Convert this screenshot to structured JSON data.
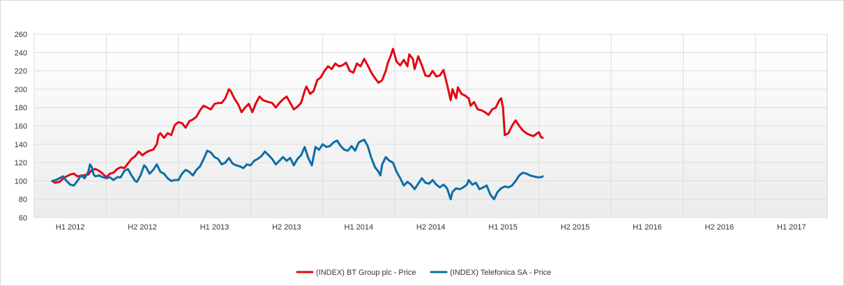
{
  "chart_data": {
    "type": "line",
    "title": "",
    "xlabel": "",
    "ylabel": "",
    "ylim": [
      60,
      260
    ],
    "yticks": [
      60,
      80,
      100,
      120,
      140,
      160,
      180,
      200,
      220,
      240,
      260
    ],
    "x_tick_labels": [
      "H1 2012",
      "H2 2012",
      "H1 2013",
      "H2 2013",
      "H1 2014",
      "H2 2014",
      "H1 2015",
      "H2 2015",
      "H1 2016",
      "H2 2016",
      "H1 2017"
    ],
    "grid": true,
    "legend_position": "bottom",
    "series": [
      {
        "name": "(INDEX) BT Group plc - Price",
        "color": "#e30613",
        "points": [
          [
            0.5,
            100
          ],
          [
            0.58,
            98
          ],
          [
            0.7,
            99
          ],
          [
            0.85,
            104
          ],
          [
            1.0,
            107
          ],
          [
            1.1,
            108
          ],
          [
            1.2,
            105
          ],
          [
            1.35,
            106
          ],
          [
            1.5,
            107
          ],
          [
            1.6,
            112
          ],
          [
            1.7,
            113
          ],
          [
            1.8,
            111
          ],
          [
            1.9,
            108
          ],
          [
            2.0,
            104
          ],
          [
            2.1,
            108
          ],
          [
            2.2,
            109
          ],
          [
            2.3,
            113
          ],
          [
            2.4,
            115
          ],
          [
            2.5,
            114
          ],
          [
            2.6,
            119
          ],
          [
            2.7,
            124
          ],
          [
            2.8,
            127
          ],
          [
            2.9,
            132
          ],
          [
            3.0,
            128
          ],
          [
            3.1,
            131
          ],
          [
            3.2,
            133
          ],
          [
            3.3,
            134
          ],
          [
            3.4,
            140
          ],
          [
            3.45,
            150
          ],
          [
            3.5,
            152
          ],
          [
            3.6,
            147
          ],
          [
            3.7,
            152
          ],
          [
            3.8,
            150
          ],
          [
            3.9,
            161
          ],
          [
            4.0,
            164
          ],
          [
            4.1,
            163
          ],
          [
            4.2,
            158
          ],
          [
            4.3,
            165
          ],
          [
            4.4,
            167
          ],
          [
            4.5,
            170
          ],
          [
            4.6,
            177
          ],
          [
            4.7,
            182
          ],
          [
            4.8,
            180
          ],
          [
            4.9,
            178
          ],
          [
            5.0,
            184
          ],
          [
            5.1,
            185
          ],
          [
            5.2,
            185
          ],
          [
            5.3,
            190
          ],
          [
            5.4,
            200
          ],
          [
            5.45,
            198
          ],
          [
            5.55,
            190
          ],
          [
            5.65,
            184
          ],
          [
            5.75,
            175
          ],
          [
            5.85,
            180
          ],
          [
            5.95,
            184
          ],
          [
            6.05,
            175
          ],
          [
            6.15,
            185
          ],
          [
            6.25,
            192
          ],
          [
            6.35,
            188
          ],
          [
            6.5,
            186
          ],
          [
            6.6,
            185
          ],
          [
            6.7,
            180
          ],
          [
            6.8,
            185
          ],
          [
            6.9,
            189
          ],
          [
            7.0,
            192
          ],
          [
            7.1,
            185
          ],
          [
            7.2,
            178
          ],
          [
            7.3,
            181
          ],
          [
            7.4,
            185
          ],
          [
            7.5,
            198
          ],
          [
            7.55,
            203
          ],
          [
            7.65,
            195
          ],
          [
            7.75,
            198
          ],
          [
            7.85,
            210
          ],
          [
            7.95,
            213
          ],
          [
            8.05,
            220
          ],
          [
            8.15,
            225
          ],
          [
            8.25,
            222
          ],
          [
            8.35,
            228
          ],
          [
            8.45,
            225
          ],
          [
            8.55,
            226
          ],
          [
            8.65,
            229
          ],
          [
            8.75,
            220
          ],
          [
            8.85,
            218
          ],
          [
            8.95,
            228
          ],
          [
            9.05,
            225
          ],
          [
            9.15,
            233
          ],
          [
            9.25,
            226
          ],
          [
            9.35,
            218
          ],
          [
            9.45,
            212
          ],
          [
            9.55,
            207
          ],
          [
            9.65,
            210
          ],
          [
            9.75,
            220
          ],
          [
            9.8,
            228
          ],
          [
            9.9,
            238
          ],
          [
            9.95,
            244
          ],
          [
            10.05,
            230
          ],
          [
            10.15,
            226
          ],
          [
            10.25,
            232
          ],
          [
            10.35,
            225
          ],
          [
            10.4,
            238
          ],
          [
            10.5,
            233
          ],
          [
            10.55,
            222
          ],
          [
            10.65,
            236
          ],
          [
            10.75,
            226
          ],
          [
            10.85,
            215
          ],
          [
            10.95,
            214
          ],
          [
            11.05,
            220
          ],
          [
            11.15,
            214
          ],
          [
            11.25,
            215
          ],
          [
            11.35,
            221
          ],
          [
            11.45,
            205
          ],
          [
            11.55,
            188
          ],
          [
            11.6,
            200
          ],
          [
            11.7,
            190
          ],
          [
            11.75,
            202
          ],
          [
            11.85,
            195
          ],
          [
            11.95,
            193
          ],
          [
            12.05,
            190
          ],
          [
            12.1,
            182
          ],
          [
            12.2,
            186
          ],
          [
            12.3,
            178
          ],
          [
            12.4,
            177
          ],
          [
            12.5,
            175
          ],
          [
            12.6,
            172
          ],
          [
            12.7,
            178
          ],
          [
            12.8,
            180
          ],
          [
            12.9,
            188
          ],
          [
            12.95,
            190
          ],
          [
            13.0,
            180
          ],
          [
            13.05,
            150
          ],
          [
            13.15,
            152
          ],
          [
            13.25,
            160
          ],
          [
            13.35,
            166
          ],
          [
            13.45,
            160
          ],
          [
            13.55,
            155
          ],
          [
            13.65,
            152
          ],
          [
            13.75,
            150
          ],
          [
            13.85,
            149
          ],
          [
            13.95,
            152
          ],
          [
            14.0,
            153
          ],
          [
            14.05,
            148
          ],
          [
            14.1,
            147
          ]
        ]
      },
      {
        "name": "(INDEX) Telefonica SA - Price",
        "color": "#0b6da8",
        "points": [
          [
            0.5,
            100
          ],
          [
            0.6,
            101
          ],
          [
            0.7,
            103
          ],
          [
            0.8,
            105
          ],
          [
            0.9,
            100
          ],
          [
            1.0,
            96
          ],
          [
            1.1,
            95
          ],
          [
            1.2,
            100
          ],
          [
            1.3,
            106
          ],
          [
            1.4,
            103
          ],
          [
            1.5,
            110
          ],
          [
            1.55,
            118
          ],
          [
            1.6,
            115
          ],
          [
            1.65,
            107
          ],
          [
            1.7,
            105
          ],
          [
            1.8,
            106
          ],
          [
            1.9,
            104
          ],
          [
            2.0,
            103
          ],
          [
            2.1,
            104
          ],
          [
            2.2,
            101
          ],
          [
            2.3,
            104
          ],
          [
            2.4,
            104
          ],
          [
            2.5,
            111
          ],
          [
            2.6,
            113
          ],
          [
            2.7,
            106
          ],
          [
            2.8,
            100
          ],
          [
            2.85,
            99
          ],
          [
            2.95,
            106
          ],
          [
            3.05,
            117
          ],
          [
            3.1,
            115
          ],
          [
            3.2,
            108
          ],
          [
            3.3,
            112
          ],
          [
            3.4,
            118
          ],
          [
            3.5,
            110
          ],
          [
            3.6,
            108
          ],
          [
            3.7,
            103
          ],
          [
            3.8,
            100
          ],
          [
            3.9,
            101
          ],
          [
            4.0,
            101
          ],
          [
            4.1,
            108
          ],
          [
            4.2,
            112
          ],
          [
            4.3,
            110
          ],
          [
            4.4,
            106
          ],
          [
            4.5,
            112
          ],
          [
            4.6,
            116
          ],
          [
            4.7,
            124
          ],
          [
            4.8,
            133
          ],
          [
            4.9,
            131
          ],
          [
            5.0,
            126
          ],
          [
            5.1,
            124
          ],
          [
            5.2,
            118
          ],
          [
            5.3,
            120
          ],
          [
            5.4,
            125
          ],
          [
            5.5,
            119
          ],
          [
            5.6,
            117
          ],
          [
            5.7,
            116
          ],
          [
            5.8,
            114
          ],
          [
            5.9,
            118
          ],
          [
            6.0,
            117
          ],
          [
            6.1,
            122
          ],
          [
            6.2,
            124
          ],
          [
            6.3,
            127
          ],
          [
            6.4,
            132
          ],
          [
            6.5,
            128
          ],
          [
            6.6,
            124
          ],
          [
            6.7,
            118
          ],
          [
            6.8,
            122
          ],
          [
            6.9,
            126
          ],
          [
            7.0,
            122
          ],
          [
            7.1,
            125
          ],
          [
            7.2,
            117
          ],
          [
            7.3,
            124
          ],
          [
            7.4,
            128
          ],
          [
            7.5,
            137
          ],
          [
            7.6,
            125
          ],
          [
            7.7,
            117
          ],
          [
            7.8,
            137
          ],
          [
            7.9,
            134
          ],
          [
            8.0,
            140
          ],
          [
            8.1,
            137
          ],
          [
            8.2,
            138
          ],
          [
            8.3,
            142
          ],
          [
            8.4,
            144
          ],
          [
            8.5,
            138
          ],
          [
            8.6,
            134
          ],
          [
            8.7,
            133
          ],
          [
            8.8,
            138
          ],
          [
            8.9,
            133
          ],
          [
            9.0,
            142
          ],
          [
            9.1,
            144
          ],
          [
            9.15,
            145
          ],
          [
            9.25,
            138
          ],
          [
            9.35,
            125
          ],
          [
            9.45,
            115
          ],
          [
            9.55,
            110
          ],
          [
            9.6,
            106
          ],
          [
            9.65,
            118
          ],
          [
            9.75,
            126
          ],
          [
            9.85,
            122
          ],
          [
            9.95,
            120
          ],
          [
            10.05,
            110
          ],
          [
            10.15,
            103
          ],
          [
            10.25,
            95
          ],
          [
            10.35,
            99
          ],
          [
            10.45,
            96
          ],
          [
            10.55,
            91
          ],
          [
            10.65,
            97
          ],
          [
            10.75,
            103
          ],
          [
            10.85,
            98
          ],
          [
            10.95,
            97
          ],
          [
            11.05,
            101
          ],
          [
            11.15,
            96
          ],
          [
            11.25,
            93
          ],
          [
            11.35,
            96
          ],
          [
            11.45,
            92
          ],
          [
            11.55,
            80
          ],
          [
            11.6,
            88
          ],
          [
            11.7,
            92
          ],
          [
            11.8,
            91
          ],
          [
            11.9,
            93
          ],
          [
            12.0,
            96
          ],
          [
            12.05,
            101
          ],
          [
            12.15,
            96
          ],
          [
            12.25,
            98
          ],
          [
            12.35,
            91
          ],
          [
            12.45,
            93
          ],
          [
            12.55,
            95
          ],
          [
            12.65,
            85
          ],
          [
            12.75,
            80
          ],
          [
            12.85,
            88
          ],
          [
            12.95,
            92
          ],
          [
            13.05,
            94
          ],
          [
            13.15,
            93
          ],
          [
            13.25,
            95
          ],
          [
            13.35,
            100
          ],
          [
            13.45,
            106
          ],
          [
            13.55,
            109
          ],
          [
            13.65,
            108
          ],
          [
            13.75,
            106
          ],
          [
            13.85,
            105
          ],
          [
            13.95,
            104
          ],
          [
            14.05,
            104
          ],
          [
            14.1,
            105
          ]
        ]
      }
    ]
  }
}
